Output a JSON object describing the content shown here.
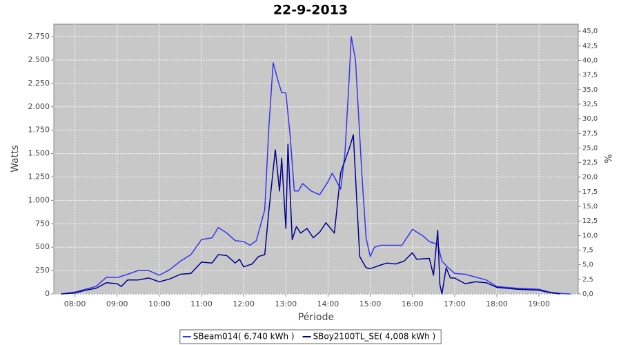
{
  "chart_data": {
    "type": "line",
    "title": "22-9-2013",
    "x_label": "Période",
    "y_label": "Watts",
    "y2_label": "%",
    "xlim": [
      7.5,
      19.93
    ],
    "xticks": [
      {
        "value": 8,
        "label": "08:00"
      },
      {
        "value": 9,
        "label": "09:00"
      },
      {
        "value": 10,
        "label": "10:00"
      },
      {
        "value": 11,
        "label": "11:00"
      },
      {
        "value": 12,
        "label": "12:00"
      },
      {
        "value": 13,
        "label": "13:00"
      },
      {
        "value": 14,
        "label": "14:00"
      },
      {
        "value": 15,
        "label": "15:00"
      },
      {
        "value": 16,
        "label": "16:00"
      },
      {
        "value": 17,
        "label": "17:00"
      },
      {
        "value": 18,
        "label": "18:00"
      },
      {
        "value": 19,
        "label": "19:00"
      }
    ],
    "ylim": [
      0,
      2883
    ],
    "yticks": [
      0,
      250,
      500,
      750,
      {
        "value": 1000,
        "label": "1.000"
      },
      {
        "value": 1250,
        "label": "1.250"
      },
      {
        "value": 1500,
        "label": "1.500"
      },
      {
        "value": 1750,
        "label": "1.750"
      },
      {
        "value": 2000,
        "label": "2.000"
      },
      {
        "value": 2250,
        "label": "2.250"
      },
      {
        "value": 2500,
        "label": "2.500"
      },
      {
        "value": 2750,
        "label": "2.750"
      }
    ],
    "y2lim": [
      0,
      46.2
    ],
    "y2ticks": [
      {
        "value": 0,
        "label": "0,0"
      },
      {
        "value": 2.5,
        "label": "2,5"
      },
      {
        "value": 5,
        "label": "5,0"
      },
      {
        "value": 7.5,
        "label": "7,5"
      },
      {
        "value": 10,
        "label": "10,0"
      },
      {
        "value": 12.5,
        "label": "12,5"
      },
      {
        "value": 15,
        "label": "15,0"
      },
      {
        "value": 17.5,
        "label": "17,5"
      },
      {
        "value": 20,
        "label": "20,0"
      },
      {
        "value": 22.5,
        "label": "22,5"
      },
      {
        "value": 25,
        "label": "25,0"
      },
      {
        "value": 27.5,
        "label": "27,5"
      },
      {
        "value": 30,
        "label": "30,0"
      },
      {
        "value": 32.5,
        "label": "32,5"
      },
      {
        "value": 35,
        "label": "35,0"
      },
      {
        "value": 37.5,
        "label": "37,5"
      },
      {
        "value": 40,
        "label": "40,0"
      },
      {
        "value": 42.5,
        "label": "42,5"
      },
      {
        "value": 45,
        "label": "45,0"
      }
    ],
    "grid": true,
    "plot_background": "#c8c8c8",
    "series": [
      {
        "name": "SBeam014( 6,740 kWh )",
        "color": "#3535ee",
        "x": [
          7.67,
          8.0,
          8.25,
          8.5,
          8.75,
          9.0,
          9.25,
          9.5,
          9.75,
          10.0,
          10.25,
          10.5,
          10.75,
          11.0,
          11.25,
          11.4,
          11.6,
          11.8,
          12.0,
          12.15,
          12.3,
          12.5,
          12.6,
          12.7,
          12.8,
          12.9,
          13.0,
          13.1,
          13.2,
          13.3,
          13.4,
          13.6,
          13.8,
          14.0,
          14.1,
          14.3,
          14.4,
          14.5,
          14.55,
          14.65,
          14.8,
          14.9,
          15.0,
          15.1,
          15.25,
          15.5,
          15.75,
          16.0,
          16.25,
          16.4,
          16.6,
          16.7,
          16.85,
          17.0,
          17.25,
          17.5,
          17.75,
          18.0,
          18.5,
          19.0,
          19.25,
          19.5,
          19.75
        ],
        "values": [
          0,
          20,
          50,
          80,
          180,
          175,
          210,
          250,
          250,
          200,
          260,
          350,
          420,
          580,
          600,
          710,
          650,
          570,
          560,
          520,
          570,
          900,
          1800,
          2470,
          2300,
          2150,
          2150,
          1700,
          1100,
          1100,
          1180,
          1100,
          1060,
          1200,
          1290,
          1120,
          1500,
          2300,
          2750,
          2500,
          1300,
          600,
          400,
          500,
          520,
          520,
          520,
          690,
          620,
          560,
          530,
          350,
          280,
          220,
          210,
          180,
          150,
          80,
          60,
          50,
          20,
          5,
          0
        ]
      },
      {
        "name": "SBoy2100TL_SE( 4,008 kWh )",
        "color": "#000090",
        "x": [
          7.67,
          8.0,
          8.25,
          8.5,
          8.75,
          9.0,
          9.1,
          9.25,
          9.5,
          9.75,
          10.0,
          10.25,
          10.5,
          10.75,
          11.0,
          11.25,
          11.4,
          11.6,
          11.8,
          11.9,
          12.0,
          12.2,
          12.35,
          12.5,
          12.6,
          12.75,
          12.85,
          12.9,
          13.0,
          13.05,
          13.15,
          13.25,
          13.35,
          13.5,
          13.65,
          13.8,
          13.95,
          14.15,
          14.3,
          14.5,
          14.6,
          14.75,
          14.9,
          15.0,
          15.25,
          15.4,
          15.6,
          15.8,
          16.0,
          16.1,
          16.4,
          16.5,
          16.6,
          16.65,
          16.7,
          16.8,
          16.9,
          17.0,
          17.25,
          17.5,
          17.75,
          18.0,
          18.5,
          19.0,
          19.25,
          19.5
        ],
        "values": [
          0,
          10,
          40,
          60,
          120,
          110,
          80,
          150,
          150,
          170,
          130,
          160,
          210,
          220,
          340,
          330,
          420,
          410,
          330,
          370,
          290,
          320,
          400,
          420,
          900,
          1540,
          1100,
          1450,
          700,
          1600,
          580,
          720,
          650,
          700,
          600,
          660,
          760,
          650,
          1300,
          1550,
          1700,
          400,
          280,
          270,
          310,
          330,
          320,
          350,
          440,
          370,
          380,
          200,
          680,
          100,
          0,
          280,
          170,
          170,
          110,
          130,
          120,
          70,
          50,
          40,
          15,
          0
        ]
      }
    ]
  }
}
